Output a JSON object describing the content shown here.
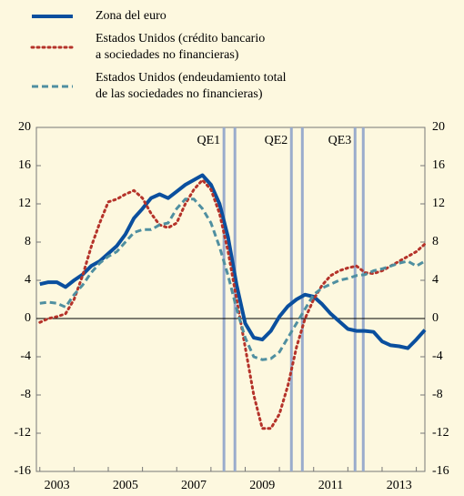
{
  "chart_data": {
    "type": "line",
    "x": [
      2003,
      2003.25,
      2003.5,
      2003.75,
      2004,
      2004.25,
      2004.5,
      2004.75,
      2005,
      2005.25,
      2005.5,
      2005.75,
      2006,
      2006.25,
      2006.5,
      2006.75,
      2007,
      2007.25,
      2007.5,
      2007.75,
      2008,
      2008.25,
      2008.5,
      2008.75,
      2009,
      2009.25,
      2009.5,
      2009.75,
      2010,
      2010.25,
      2010.5,
      2010.75,
      2011,
      2011.25,
      2011.5,
      2011.75,
      2012,
      2012.25,
      2012.5,
      2012.75,
      2013,
      2013.25,
      2013.5,
      2013.75,
      2014,
      2014.25
    ],
    "series": [
      {
        "name": "Zona del euro",
        "color": "#0a4f9e",
        "style": "solid",
        "values": [
          3.6,
          3.8,
          3.8,
          3.3,
          4.0,
          4.6,
          5.5,
          6.0,
          6.8,
          7.6,
          8.8,
          10.5,
          11.5,
          12.6,
          13.0,
          12.6,
          13.3,
          14.0,
          14.5,
          15.0,
          14.0,
          12.0,
          8.5,
          3.5,
          -0.5,
          -2.0,
          -2.2,
          -1.3,
          0.2,
          1.3,
          2.0,
          2.5,
          2.3,
          1.5,
          0.5,
          -0.3,
          -1.1,
          -1.3,
          -1.3,
          -1.4,
          -2.4,
          -2.8,
          -2.9,
          -3.1,
          -2.2,
          -1.2
        ]
      },
      {
        "name": "Estados Unidos (crédito bancario\na sociedades no financieras)",
        "color": "#b5332a",
        "style": "dotted",
        "values": [
          -0.4,
          0.0,
          0.2,
          0.5,
          2.0,
          4.5,
          7.5,
          10.0,
          12.2,
          12.5,
          13.0,
          13.4,
          12.6,
          11.0,
          9.8,
          9.5,
          10.0,
          12.0,
          13.5,
          14.5,
          13.5,
          11.0,
          7.0,
          2.0,
          -3.0,
          -8.0,
          -11.5,
          -11.5,
          -10.0,
          -7.0,
          -3.0,
          0.0,
          2.0,
          3.5,
          4.5,
          5.0,
          5.3,
          5.5,
          4.8,
          4.7,
          5.0,
          5.5,
          6.0,
          6.5,
          7.0,
          7.8
        ]
      },
      {
        "name": "Estados Unidos (endeudamiento total\nde las sociedades no financieras)",
        "color": "#4f8fa0",
        "style": "dashed",
        "values": [
          1.6,
          1.7,
          1.6,
          1.2,
          2.5,
          3.5,
          4.8,
          5.8,
          6.5,
          7.0,
          8.0,
          9.0,
          9.3,
          9.3,
          9.8,
          10.0,
          11.5,
          12.5,
          12.5,
          11.5,
          10.0,
          7.5,
          4.5,
          1.0,
          -2.0,
          -4.0,
          -4.3,
          -4.2,
          -3.5,
          -2.0,
          -0.5,
          1.0,
          2.5,
          3.2,
          3.6,
          4.0,
          4.2,
          4.5,
          4.6,
          5.0,
          5.2,
          5.5,
          5.8,
          6.0,
          5.5,
          6.0
        ]
      }
    ],
    "xlim": [
      2002.9,
      2014.25
    ],
    "xticks": [
      {
        "value": 2003.5,
        "label": "2003"
      },
      {
        "value": 2005.5,
        "label": "2005"
      },
      {
        "value": 2007.5,
        "label": "2007"
      },
      {
        "value": 2009.5,
        "label": "2009"
      },
      {
        "value": 2011.5,
        "label": "2011"
      },
      {
        "value": 2013.5,
        "label": "2013"
      }
    ],
    "xtick_marks": [
      2003,
      2004,
      2005,
      2006,
      2007,
      2008,
      2009,
      2010,
      2011,
      2012,
      2013,
      2014
    ],
    "ylim": [
      -16,
      20
    ],
    "yticks": [
      -16,
      -12,
      -8,
      -4,
      0,
      4,
      8,
      12,
      16,
      20
    ],
    "y2lim": [
      -16,
      20
    ],
    "y2ticks": [
      -16,
      -12,
      -8,
      -4,
      0,
      4,
      8,
      12,
      16,
      20
    ],
    "annotations": [
      {
        "text": "QE1",
        "x": [
          2008.38,
          2008.7
        ]
      },
      {
        "text": "QE2",
        "x": [
          2010.35,
          2010.67
        ]
      },
      {
        "text": "QE3",
        "x": [
          2012.21,
          2012.45
        ]
      }
    ]
  }
}
